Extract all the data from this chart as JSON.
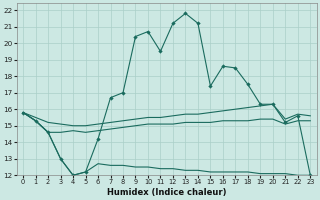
{
  "xlabel": "Humidex (Indice chaleur)",
  "xlim": [
    -0.5,
    23.5
  ],
  "ylim": [
    12,
    22.4
  ],
  "yticks": [
    12,
    13,
    14,
    15,
    16,
    17,
    18,
    19,
    20,
    21,
    22
  ],
  "xticks": [
    0,
    1,
    2,
    3,
    4,
    5,
    6,
    7,
    8,
    9,
    10,
    11,
    12,
    13,
    14,
    15,
    16,
    17,
    18,
    19,
    20,
    21,
    22,
    23
  ],
  "bg_color": "#cce8e3",
  "line_color": "#1a6b5e",
  "grid_color": "#aacfc8",
  "curve_main_y": [
    15.8,
    15.3,
    14.6,
    13.0,
    12.0,
    12.2,
    14.2,
    16.7,
    17.0,
    20.4,
    20.7,
    19.5,
    21.2,
    21.8,
    21.2,
    17.4,
    18.6,
    18.5,
    17.5,
    16.3,
    16.3,
    15.2,
    15.6,
    12.0
  ],
  "curve_upper_y": [
    15.8,
    15.5,
    15.2,
    15.1,
    15.0,
    15.0,
    15.1,
    15.2,
    15.3,
    15.4,
    15.5,
    15.5,
    15.6,
    15.7,
    15.7,
    15.8,
    15.9,
    16.0,
    16.1,
    16.2,
    16.3,
    15.4,
    15.7,
    15.6
  ],
  "curve_mid_y": [
    15.8,
    15.3,
    14.6,
    14.6,
    14.7,
    14.6,
    14.7,
    14.8,
    14.9,
    15.0,
    15.1,
    15.1,
    15.1,
    15.2,
    15.2,
    15.2,
    15.3,
    15.3,
    15.3,
    15.4,
    15.4,
    15.1,
    15.3,
    15.3
  ],
  "curve_lower_y": [
    15.8,
    15.3,
    14.6,
    13.0,
    12.0,
    12.2,
    12.7,
    12.6,
    12.6,
    12.5,
    12.5,
    12.4,
    12.4,
    12.3,
    12.3,
    12.2,
    12.2,
    12.2,
    12.2,
    12.1,
    12.1,
    12.1,
    12.0,
    12.0
  ]
}
